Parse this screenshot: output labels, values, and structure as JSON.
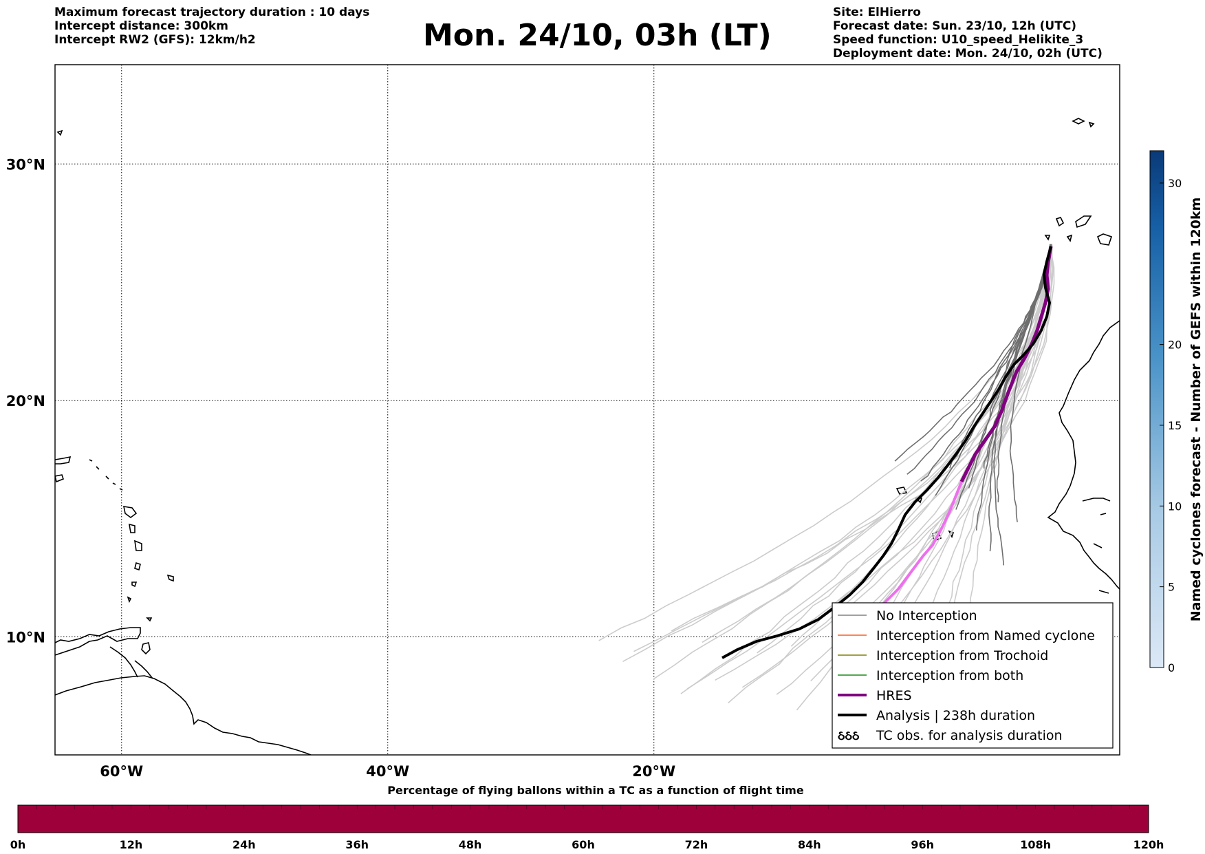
{
  "header": {
    "left_lines": [
      "Maximum forecast trajectory duration : 10 days",
      "Intercept distance: 300km",
      "Intercept RW2 (GFS):  12km/h2"
    ],
    "title": "Mon. 24/10, 03h (LT)",
    "right_lines": [
      "Site: ElHierro",
      "Forecast date: Sun. 23/10, 12h (UTC)",
      "Speed function: U10_speed_Helikite_3",
      "Deployment date: Mon. 24/10, 02h (UTC)"
    ]
  },
  "map": {
    "lon_range": [
      -65,
      15
    ],
    "lat_range": [
      5,
      34.2
    ],
    "lat_ticks": [
      {
        "value": 30,
        "label": "30°N"
      },
      {
        "value": 20,
        "label": "20°N"
      },
      {
        "value": 10,
        "label": "10°N"
      }
    ],
    "lon_ticks": [
      {
        "value": -60,
        "label": "60°W"
      },
      {
        "value": -40,
        "label": "40°W"
      },
      {
        "value": -20,
        "label": "20°W"
      }
    ],
    "colors": {
      "coast": "#000000",
      "grid": "#000000",
      "no_interception_dark": "#6e6e6e",
      "no_interception_light": "#cccccc",
      "hres": "#800080",
      "hres_light": "#ee6fee",
      "analysis": "#000000"
    }
  },
  "legend": [
    {
      "label": "No Interception",
      "color": "#808080",
      "width": 1.5
    },
    {
      "label": "Interception from Named cyclone",
      "color": "#ff5a1f",
      "width": 1.5
    },
    {
      "label": "Interception from Trochoid",
      "color": "#808000",
      "width": 1.5
    },
    {
      "label": "Interception from both",
      "color": "#1a8c1a",
      "width": 1.5
    },
    {
      "label": "HRES",
      "color": "#800080",
      "width": 4
    },
    {
      "label": "Analysis | 238h duration",
      "color": "#000000",
      "width": 4
    },
    {
      "label": "TC obs. for analysis duration",
      "color": "#000000",
      "symbol": "ઠઠઠ"
    }
  ],
  "right_colorbar": {
    "label": "Named cyclones forecast - Number of GEFS within 120km",
    "min": 0,
    "max": 32,
    "ticks": [
      0,
      5,
      10,
      15,
      20,
      30
    ]
  },
  "bottom_colorbar": {
    "title": "Percentage of flying ballons within a TC as a function of flight time",
    "color": "#9e003a",
    "ticks": [
      "0h",
      "12h",
      "24h",
      "36h",
      "48h",
      "60h",
      "72h",
      "84h",
      "96h",
      "108h",
      "120h"
    ]
  }
}
